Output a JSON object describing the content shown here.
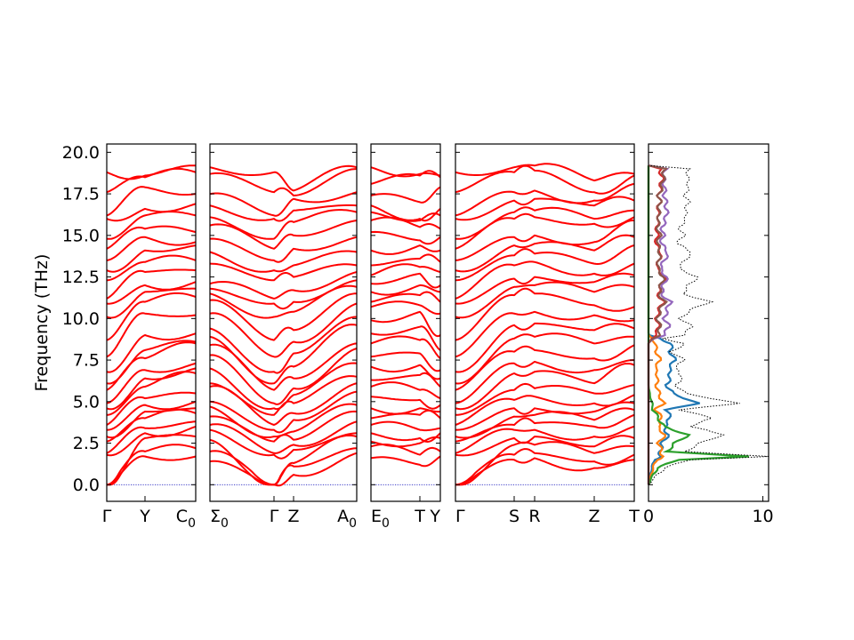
{
  "chart_data": {
    "type": "line",
    "title": "",
    "ylabel": "Frequency (THz)",
    "ylim": [
      -1.0,
      20.5
    ],
    "yticks": [
      "0.0",
      "2.5",
      "5.0",
      "7.5",
      "10.0",
      "12.5",
      "15.0",
      "17.5",
      "20.0"
    ],
    "band_color": "#ff0000",
    "zero_line_color": "#1f1fbf",
    "band_panels": [
      {
        "path_labels": [
          "Γ",
          "Y",
          "C0"
        ],
        "bands_at_labels": [
          [
            0.0,
            0.0,
            0.0,
            1.8,
            1.9,
            2.6,
            2.9,
            3.3,
            3.6,
            4.2,
            4.6,
            4.9,
            5.7,
            6.1,
            6.8,
            7.7,
            8.7,
            10.1,
            10.9,
            11.2,
            12.3,
            12.9,
            13.5,
            14.2,
            14.8,
            16.0,
            16.2,
            17.6,
            18.8
          ],
          [
            1.7,
            2.0,
            2.8,
            3.1,
            3.4,
            4.0,
            4.4,
            4.8,
            5.2,
            5.9,
            6.4,
            6.9,
            7.6,
            8.1,
            9.0,
            10.3,
            11.0,
            11.6,
            12.0,
            12.8,
            13.4,
            14.1,
            14.9,
            15.4,
            16.2,
            16.6,
            17.9,
            18.5,
            18.6
          ],
          [
            1.7,
            2.2,
            2.9,
            3.5,
            3.8,
            4.3,
            4.6,
            5.0,
            5.5,
            6.7,
            7.0,
            7.3,
            8.5,
            8.6,
            9.1,
            10.2,
            11.3,
            11.8,
            12.2,
            12.9,
            13.5,
            14.4,
            14.6,
            15.2,
            16.2,
            16.9,
            17.5,
            18.8,
            19.2
          ]
        ]
      },
      {
        "path_labels": [
          "Σ0",
          "Γ",
          "Z",
          "A0"
        ],
        "bands_at_labels": [
          [
            1.4,
            2.0,
            2.7,
            3.3,
            3.6,
            4.1,
            4.7,
            5.0,
            5.9,
            6.1,
            7.0,
            7.8,
            8.4,
            8.9,
            9.4,
            10.3,
            11.1,
            11.5,
            11.8,
            12.1,
            13.3,
            14.0,
            14.8,
            15.6,
            16.1,
            16.8,
            17.5,
            18.7,
            19.1
          ],
          [
            0.0,
            0.0,
            0.0,
            1.8,
            1.9,
            2.6,
            2.9,
            3.3,
            3.6,
            4.2,
            4.6,
            4.9,
            5.7,
            6.1,
            6.8,
            7.7,
            8.7,
            10.1,
            10.9,
            11.2,
            12.3,
            12.9,
            13.5,
            14.2,
            14.8,
            16.0,
            16.2,
            17.6,
            18.8
          ],
          [
            0.6,
            1.1,
            1.3,
            2.1,
            2.4,
            2.7,
            3.2,
            3.9,
            4.3,
            4.9,
            5.4,
            5.8,
            6.4,
            7.1,
            7.9,
            8.6,
            9.3,
            10.4,
            11.0,
            11.7,
            12.5,
            13.2,
            14.2,
            15.0,
            15.8,
            16.5,
            17.2,
            17.4,
            17.7
          ],
          [
            1.9,
            2.2,
            2.9,
            3.1,
            3.8,
            4.4,
            4.8,
            5.6,
            6.1,
            6.5,
            7.3,
            8.2,
            8.5,
            9.6,
            10.1,
            10.9,
            11.5,
            11.9,
            12.3,
            12.8,
            13.2,
            14.0,
            14.9,
            15.9,
            16.4,
            16.8,
            17.6,
            19.0,
            19.1
          ]
        ]
      },
      {
        "path_labels": [
          "E0",
          "T",
          "Y"
        ],
        "bands_at_labels": [
          [
            1.6,
            2.3,
            2.6,
            3.1,
            3.6,
            4.0,
            4.6,
            5.3,
            5.9,
            6.3,
            7.1,
            7.7,
            8.5,
            9.1,
            9.9,
            10.7,
            11.0,
            11.6,
            12.1,
            12.6,
            13.2,
            14.1,
            15.2,
            15.9,
            16.4,
            16.8,
            17.4,
            18.1,
            19.1
          ],
          [
            1.2,
            1.8,
            2.5,
            2.8,
            3.3,
            4.2,
            4.6,
            5.1,
            5.7,
            6.6,
            7.2,
            7.9,
            8.7,
            9.5,
            10.4,
            10.8,
            11.4,
            12.0,
            12.7,
            13.1,
            13.6,
            14.4,
            14.7,
            15.5,
            15.9,
            16.0,
            17.0,
            18.6,
            18.7
          ],
          [
            1.7,
            2.0,
            2.8,
            3.1,
            3.4,
            4.0,
            4.4,
            4.8,
            5.2,
            5.9,
            6.4,
            6.9,
            7.6,
            8.1,
            9.0,
            10.3,
            11.0,
            11.6,
            12.0,
            12.8,
            13.4,
            14.1,
            14.9,
            15.4,
            16.2,
            16.6,
            17.9,
            18.5,
            18.6
          ]
        ]
      },
      {
        "path_labels": [
          "Γ",
          "S",
          "R",
          "Z",
          "T"
        ],
        "bands_at_labels": [
          [
            0.0,
            0.0,
            0.0,
            1.8,
            1.9,
            2.6,
            2.9,
            3.3,
            3.6,
            4.2,
            4.6,
            4.9,
            5.7,
            6.1,
            6.8,
            7.7,
            8.7,
            10.1,
            10.9,
            11.2,
            12.3,
            12.9,
            13.5,
            14.2,
            14.8,
            16.0,
            16.2,
            17.6,
            18.8
          ],
          [
            1.5,
            1.8,
            2.4,
            2.8,
            3.3,
            3.6,
            4.1,
            4.6,
            5.1,
            5.7,
            6.7,
            7.3,
            8.0,
            8.8,
            9.6,
            10.3,
            11.4,
            11.9,
            12.4,
            13.2,
            13.8,
            14.4,
            14.9,
            16.0,
            16.4,
            17.1,
            17.6,
            18.8,
            19.1
          ],
          [
            1.6,
            1.9,
            2.4,
            2.9,
            3.3,
            3.7,
            4.2,
            4.6,
            5.3,
            5.8,
            6.8,
            7.4,
            8.1,
            8.9,
            9.7,
            10.4,
            11.5,
            12.0,
            12.5,
            13.4,
            13.9,
            14.5,
            15.0,
            16.1,
            16.5,
            17.2,
            17.7,
            18.9,
            19.2
          ],
          [
            1.0,
            1.4,
            1.9,
            2.3,
            2.9,
            3.5,
            3.9,
            4.4,
            4.9,
            5.5,
            6.1,
            6.9,
            7.6,
            8.5,
            9.3,
            10.2,
            10.8,
            11.6,
            12.2,
            12.7,
            13.3,
            14.1,
            14.6,
            15.7,
            16.0,
            16.8,
            17.1,
            17.6,
            18.3
          ],
          [
            1.5,
            1.8,
            2.3,
            2.8,
            3.5,
            4.2,
            4.5,
            4.9,
            5.4,
            6.0,
            7.2,
            7.5,
            8.4,
            8.9,
            9.4,
            9.9,
            10.7,
            11.9,
            12.6,
            13.3,
            14.4,
            14.9,
            15.9,
            16.1,
            16.5,
            17.1,
            18.1,
            18.6,
            18.7
          ]
        ]
      }
    ],
    "dos_panel": {
      "xlim": [
        0,
        10.5
      ],
      "xticks": [
        "0",
        "10"
      ],
      "freq": [
        0.0,
        0.5,
        1.0,
        1.5,
        1.7,
        2.0,
        2.5,
        3.0,
        3.3,
        3.5,
        4.0,
        4.5,
        4.9,
        5.5,
        6.0,
        6.5,
        7.0,
        7.5,
        8.0,
        8.5,
        8.8,
        9.0,
        9.5,
        10.0,
        10.5,
        11.0,
        11.5,
        12.0,
        12.5,
        13.0,
        13.5,
        14.0,
        14.5,
        15.0,
        15.5,
        16.0,
        16.5,
        17.0,
        17.4,
        18.0,
        18.5,
        19.0,
        19.2
      ],
      "total": [
        0,
        0.6,
        1.4,
        3.5,
        10.5,
        3.2,
        4.5,
        6.5,
        5.2,
        3.5,
        5.6,
        2.8,
        7.8,
        3.2,
        2.4,
        3.0,
        2.3,
        3.1,
        2.0,
        3.2,
        1.2,
        3.0,
        3.8,
        2.8,
        3.6,
        5.4,
        3.0,
        3.5,
        4.3,
        2.6,
        3.2,
        3.8,
        2.5,
        3.1,
        2.7,
        3.3,
        3.2,
        3.5,
        3.2,
        3.5,
        3.4,
        3.5,
        0
      ],
      "series": [
        {
          "color": "#1f77b4",
          "values": [
            0,
            0.1,
            0.3,
            0.5,
            1.1,
            1.0,
            1.2,
            1.7,
            1.5,
            1.4,
            1.9,
            1.6,
            4.3,
            2.1,
            1.6,
            1.9,
            1.8,
            2.3,
            1.9,
            2.0,
            1.0,
            0,
            0,
            0,
            0,
            0,
            0,
            0,
            0,
            0,
            0,
            0,
            0,
            0,
            0,
            0,
            0,
            0,
            0,
            0,
            0,
            0,
            0
          ]
        },
        {
          "color": "#ff7f0e",
          "values": [
            0,
            0.2,
            0.4,
            0.7,
            1.3,
            1.1,
            0.9,
            1.4,
            1.1,
            0.8,
            1.2,
            0.6,
            1.3,
            0.9,
            0.7,
            0.8,
            0.6,
            1.0,
            0.7,
            0.6,
            0.3,
            0,
            0,
            0,
            0,
            0,
            0,
            0,
            0,
            0,
            0,
            0,
            0,
            0,
            0,
            0,
            0,
            0,
            0,
            0,
            0,
            0,
            0
          ]
        },
        {
          "color": "#2ca02c",
          "values": [
            0,
            0.3,
            0.8,
            2.5,
            8.8,
            1.6,
            2.3,
            3.5,
            2.2,
            1.3,
            0.9,
            0.4,
            0.3,
            0.1,
            0,
            0,
            0,
            0,
            0,
            0,
            0,
            0,
            0,
            0,
            0,
            0,
            0,
            0,
            0,
            0,
            0,
            0,
            0,
            0,
            0,
            0,
            0,
            0,
            0,
            0,
            0,
            0,
            0
          ]
        },
        {
          "color": "#d62728",
          "values": [
            0,
            0,
            0,
            0,
            0,
            0,
            0,
            0,
            0,
            0,
            0,
            0,
            0,
            0,
            0,
            0,
            0,
            0,
            0,
            0,
            0.3,
            0.6,
            0.9,
            0.7,
            0.9,
            1.3,
            0.8,
            1.1,
            1.5,
            0.7,
            0.9,
            1.1,
            0.6,
            0.8,
            0.7,
            0.9,
            0.8,
            1.0,
            0.9,
            1.1,
            1.2,
            1.0,
            0
          ]
        },
        {
          "color": "#9467bd",
          "values": [
            0,
            0,
            0,
            0,
            0,
            0,
            0,
            0,
            0,
            0,
            0,
            0,
            0,
            0,
            0,
            0,
            0,
            0,
            0,
            0,
            0.5,
            1.3,
            1.8,
            1.4,
            1.6,
            1.9,
            1.1,
            1.3,
            1.6,
            1.0,
            1.4,
            1.7,
            1.1,
            1.3,
            1.2,
            1.5,
            1.6,
            1.5,
            1.4,
            1.4,
            1.3,
            1.5,
            0
          ]
        },
        {
          "color": "#8c564b",
          "values": [
            0,
            0,
            0,
            0,
            0,
            0,
            0,
            0,
            0,
            0,
            0,
            0,
            0,
            0,
            0,
            0,
            0,
            0,
            0,
            0,
            0.4,
            0.9,
            1.0,
            0.8,
            1.0,
            1.4,
            0.9,
            1.1,
            1.3,
            0.8,
            0.9,
            1.0,
            0.8,
            1.0,
            0.8,
            0.9,
            0.9,
            1.0,
            0.9,
            1.2,
            1.3,
            1.4,
            0
          ]
        }
      ]
    }
  }
}
